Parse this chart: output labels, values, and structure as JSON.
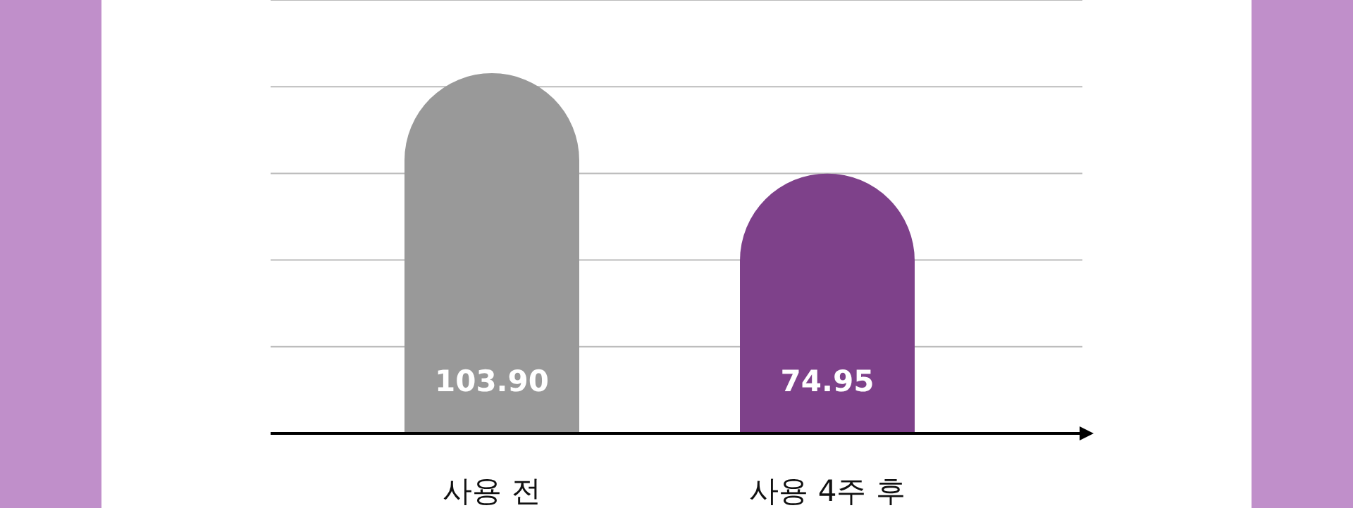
{
  "chart_data": {
    "type": "bar",
    "categories": [
      "사용 전",
      "사용 4주 후"
    ],
    "values": [
      103.9,
      74.95
    ],
    "value_labels": [
      "103.90",
      "74.95"
    ],
    "colors": [
      "#999999",
      "#7e418a"
    ],
    "ylim": [
      0,
      125
    ],
    "yticks": [
      {
        "value": 25,
        "label": null
      },
      {
        "value": 50,
        "label": null
      },
      {
        "value": 75,
        "label": null
      },
      {
        "value": 100,
        "label": null
      },
      {
        "value": 125,
        "label": null
      }
    ],
    "grid": "y",
    "tick_labels": "x"
  }
}
